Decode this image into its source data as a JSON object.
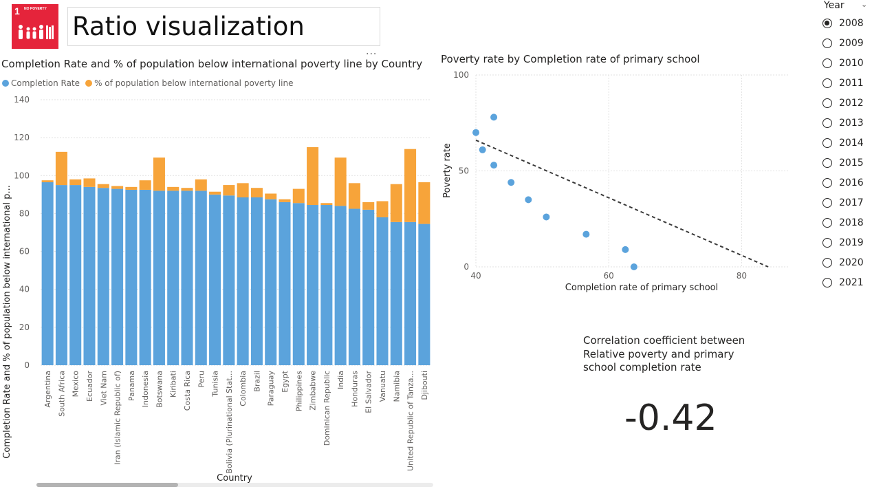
{
  "header": {
    "logo": {
      "number": "1",
      "text": "NO POVERTY",
      "color": "#e5243b"
    },
    "title": "Ratio visualization",
    "more_icon": "ellipsis-icon"
  },
  "bar_chart": {
    "chart_data": {
      "type": "bar",
      "stacked": true,
      "title": "Completion Rate and % of population below international poverty line by Country",
      "xlabel": "Country",
      "ylabel": "Completion Rate and % of population below international p...",
      "ylim": [
        0,
        140
      ],
      "yticks": [
        0,
        20,
        40,
        60,
        80,
        100,
        120,
        140
      ],
      "grid": true,
      "legend": "top-left",
      "categories": [
        "Argentina",
        "South Africa",
        "Mexico",
        "Ecuador",
        "Viet Nam",
        "Iran (Islamic Republic of)",
        "Panama",
        "Indonesia",
        "Botswana",
        "Kiribati",
        "Costa Rica",
        "Peru",
        "Tunisia",
        "Bolivia (Plurinational Stat...",
        "Colombia",
        "Brazil",
        "Paraguay",
        "Egypt",
        "Philippines",
        "Zimbabwe",
        "Dominican Republic",
        "India",
        "Honduras",
        "El Salvador",
        "Vanuatu",
        "Namibia",
        "United Republic of Tanza...",
        "Djibouti"
      ],
      "series": [
        {
          "name": "Completion Rate",
          "color": "#5ba3dc",
          "values": [
            96.5,
            95,
            95,
            94,
            93.5,
            93,
            92.5,
            92.5,
            92,
            92,
            92,
            92,
            90,
            89.5,
            88.5,
            88.5,
            87.5,
            86,
            85.5,
            84.5,
            84.5,
            84,
            82.5,
            82,
            78,
            75.5,
            75.5,
            74.5
          ]
        },
        {
          "name": "% of population below international poverty line",
          "color": "#f7a43a",
          "values": [
            1,
            17.5,
            3,
            4.5,
            2,
            1.5,
            1.5,
            5,
            17.5,
            2,
            1.5,
            6,
            1.5,
            5.5,
            7.5,
            5,
            3,
            1.5,
            7.5,
            30.5,
            1,
            25.5,
            13.5,
            4,
            8.5,
            20,
            38.5,
            22
          ]
        }
      ]
    }
  },
  "scatter_chart": {
    "chart_data": {
      "type": "scatter",
      "title": "Poverty rate by Completion rate of primary school",
      "xlabel": "Completion rate of primary school",
      "ylabel": "Poverty rate",
      "xlim": [
        40,
        87
      ],
      "ylim": [
        0,
        100
      ],
      "xticks": [
        40,
        60,
        80
      ],
      "yticks": [
        0,
        50,
        100
      ],
      "grid": true,
      "point_color": "#5ba3dc",
      "points": [
        {
          "x": 40,
          "y": 70
        },
        {
          "x": 41,
          "y": 61
        },
        {
          "x": 42.7,
          "y": 78
        },
        {
          "x": 42.7,
          "y": 53
        },
        {
          "x": 45.3,
          "y": 44
        },
        {
          "x": 47.9,
          "y": 35
        },
        {
          "x": 50.6,
          "y": 26
        },
        {
          "x": 56.6,
          "y": 17
        },
        {
          "x": 62.5,
          "y": 9
        },
        {
          "x": 63.8,
          "y": 0
        }
      ],
      "trendline": {
        "style": "dashed",
        "color": "#3b3b3b",
        "from": {
          "x": 40,
          "y": 66
        },
        "to": {
          "x": 84,
          "y": 0
        }
      }
    }
  },
  "correlation": {
    "title": "Correlation coefficient between Relative poverty and primary school completion rate",
    "value": "-0.42"
  },
  "year_slicer": {
    "header": "Year",
    "chevron_icon": "chevron-down-icon",
    "options": [
      "2008",
      "2009",
      "2010",
      "2011",
      "2012",
      "2013",
      "2014",
      "2015",
      "2016",
      "2017",
      "2018",
      "2019",
      "2020",
      "2021"
    ],
    "selected": "2008"
  }
}
